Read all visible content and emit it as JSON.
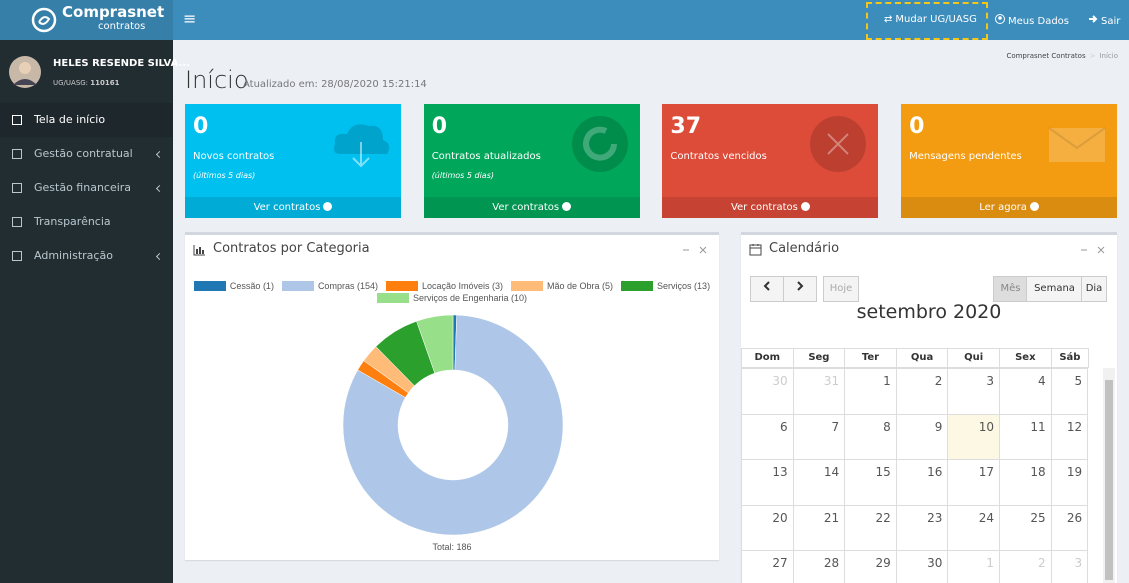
{
  "header": {
    "logo_title": "Comprasnet",
    "logo_subtitle": "contratos",
    "menu_toggle": "≡",
    "links": [
      "Mudar UG/UASG",
      "Meus Dados",
      "Sair"
    ]
  },
  "sidebar": {
    "user_name": "HELES RESENDE SILVA...",
    "user_unit_label": "UG/UASG:",
    "user_unit": "110161",
    "menu": [
      "Tela de início",
      "Gestão contratual",
      "Gestão financeira",
      "Transparência",
      "Administração"
    ]
  },
  "page": {
    "title": "Início",
    "updated": "Atualizado em: 28/08/2020 15:21:14",
    "breadcrumb": [
      "Comprasnet Contratos",
      "Início"
    ]
  },
  "cards": [
    {
      "value": 0,
      "label": "Novos contratos",
      "note": "(últimos 5 dias)",
      "link": "Ver contratos",
      "color": "#00c0ef"
    },
    {
      "value": 0,
      "label": "Contratos atualizados",
      "note": "(últimos 5 dias)",
      "link": "Ver contratos",
      "color": "#00a65a"
    },
    {
      "value": 37,
      "label": "Contratos vencidos",
      "link": "Ver contratos",
      "color": "#dd4b39"
    },
    {
      "value": 0,
      "label": "Mensagens pendentes",
      "link": "Ler agora",
      "color": "#f39c12"
    }
  ],
  "chart_data": {
    "type": "donut",
    "title": "Contratos por Categoria",
    "categories": [
      "Cessão (1)",
      "Compras (154)",
      "Locação Imóveis (3)",
      "Mão de Obra (5)",
      "Serviços (13)",
      "Serviços de Engenharia (10)"
    ],
    "values": [
      1,
      154,
      3,
      5,
      13,
      10
    ],
    "colors": [
      "#1f77b4",
      "#aec7e8",
      "#ff7f0e",
      "#ffbb78",
      "#2ca02c",
      "#98df8a"
    ],
    "total_label": "Total: 186"
  },
  "calendar": {
    "title": "Calendário",
    "today_button": "Hoje",
    "views": [
      "Mês",
      "Semana",
      "Dia"
    ],
    "month": "setembro 2020",
    "weekdays": [
      "Dom",
      "Seg",
      "Ter",
      "Qua",
      "Qui",
      "Sex",
      "Sáb"
    ],
    "weeks": [
      [
        30,
        31,
        1,
        2,
        3,
        4,
        5
      ],
      [
        6,
        7,
        8,
        9,
        10,
        11,
        12
      ],
      [
        13,
        14,
        15,
        16,
        17,
        18,
        19
      ],
      [
        20,
        21,
        22,
        23,
        24,
        25,
        26
      ],
      [
        27,
        28,
        29,
        30,
        1,
        2,
        3
      ]
    ],
    "today": 10
  }
}
